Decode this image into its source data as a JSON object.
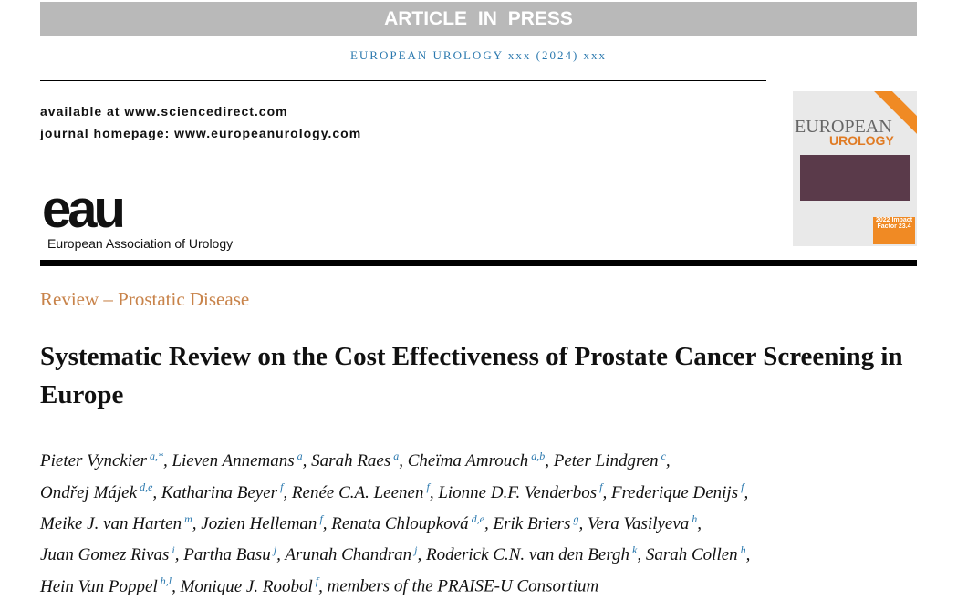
{
  "header": {
    "banner": "ARTICLE IN PRESS",
    "journal_line": "EUROPEAN UROLOGY xxx (2024) xxx",
    "available": "available at www.sciencedirect.com",
    "homepage": "journal homepage: www.europeanurology.com",
    "logo_mark": "eau",
    "society": "European Association of Urology",
    "cover": {
      "line1": "EUROPEAN",
      "line2": "UROLOGY",
      "impact": "2022 Impact Factor 23.4"
    }
  },
  "article": {
    "category": "Review – Prostatic Disease",
    "title": "Systematic Review on the Cost Effectiveness of Prostate Cancer Screening in Europe",
    "author_lines": [
      [
        {
          "name": "Pieter Vynckier",
          "sup": "a,*",
          "sep": ","
        },
        {
          "name": "Lieven Annemans",
          "sup": "a",
          "sep": ","
        },
        {
          "name": "Sarah Raes",
          "sup": "a",
          "sep": ","
        },
        {
          "name": "Cheïma Amrouch",
          "sup": "a,b",
          "sep": ","
        },
        {
          "name": "Peter Lindgren",
          "sup": "c",
          "sep": ","
        }
      ],
      [
        {
          "name": "Ondřej Májek",
          "sup": "d,e",
          "sep": ","
        },
        {
          "name": "Katharina Beyer",
          "sup": "f",
          "sep": ","
        },
        {
          "name": "Renée C.A. Leenen",
          "sup": "f",
          "sep": ","
        },
        {
          "name": "Lionne D.F. Venderbos",
          "sup": "f",
          "sep": ","
        },
        {
          "name": "Frederique Denijs",
          "sup": "f",
          "sep": ","
        }
      ],
      [
        {
          "name": "Meike J. van Harten",
          "sup": "m",
          "sep": ","
        },
        {
          "name": "Jozien Helleman",
          "sup": "f",
          "sep": ","
        },
        {
          "name": "Renata Chloupková",
          "sup": "d,e",
          "sep": ","
        },
        {
          "name": "Erik Briers",
          "sup": "g",
          "sep": ","
        },
        {
          "name": "Vera Vasilyeva",
          "sup": "h",
          "sep": ","
        }
      ],
      [
        {
          "name": "Juan Gomez Rivas",
          "sup": "i",
          "sep": ","
        },
        {
          "name": "Partha Basu",
          "sup": "j",
          "sep": ","
        },
        {
          "name": "Arunah Chandran",
          "sup": "j",
          "sep": ","
        },
        {
          "name": "Roderick C.N. van den Bergh",
          "sup": "k",
          "sep": ","
        },
        {
          "name": "Sarah Collen",
          "sup": "h",
          "sep": ","
        }
      ],
      [
        {
          "name": "Hein Van Poppel",
          "sup": "h,l",
          "sep": ","
        },
        {
          "name": "Monique J. Roobol",
          "sup": "f",
          "sep": ","
        },
        {
          "name": "members of the PRAISE-U Consortium"
        }
      ]
    ]
  }
}
